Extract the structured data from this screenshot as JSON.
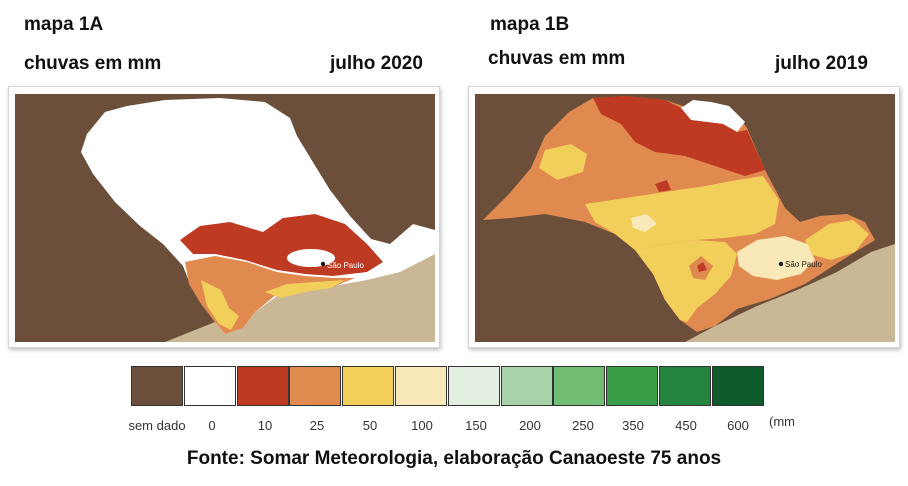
{
  "map_a": {
    "title": "mapa 1A",
    "subtitle": "chuvas em mm",
    "date": "julho 2020"
  },
  "map_b": {
    "title": "mapa 1B",
    "subtitle": "chuvas em mm",
    "date": "julho 2019"
  },
  "city_label": "São Paulo",
  "legend": {
    "unit": "(mm",
    "classes": [
      {
        "label": "sem dado",
        "color": "#6b4f3a"
      },
      {
        "label": "0",
        "color": "#ffffff"
      },
      {
        "label": "10",
        "color": "#bf3a22"
      },
      {
        "label": "25",
        "color": "#e08a50"
      },
      {
        "label": "50",
        "color": "#f1cf5a"
      },
      {
        "label": "100",
        "color": "#f9e8b8"
      },
      {
        "label": "150",
        "color": "#e3efe1"
      },
      {
        "label": "200",
        "color": "#a8d3a8"
      },
      {
        "label": "250",
        "color": "#72bd74"
      },
      {
        "label": "350",
        "color": "#3a9d48"
      },
      {
        "label": "450",
        "color": "#25843f"
      },
      {
        "label": "600",
        "color": "#0f5a2a"
      }
    ]
  },
  "source": "Fonte: Somar Meteorologia, elaboração Canaoeste 75 anos"
}
